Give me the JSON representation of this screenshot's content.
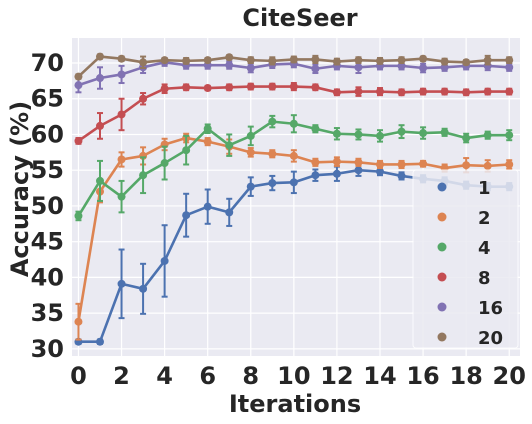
{
  "chart_data": {
    "type": "line",
    "title": "CiteSeer",
    "xlabel": "Iterations",
    "ylabel": "Accuracy (%)",
    "x": [
      0,
      1,
      2,
      3,
      4,
      5,
      6,
      7,
      8,
      9,
      10,
      11,
      12,
      13,
      14,
      15,
      16,
      17,
      18,
      19,
      20
    ],
    "xlim": [
      -0.3,
      20.5
    ],
    "ylim": [
      29,
      73.5
    ],
    "xticks": [
      0,
      2,
      4,
      6,
      8,
      10,
      12,
      14,
      16,
      18,
      20
    ],
    "yticks": [
      30,
      35,
      40,
      45,
      50,
      55,
      60,
      65,
      70
    ],
    "grid": true,
    "legend_position": "bottom-right",
    "series": [
      {
        "name": "1",
        "color": "#4c72b0",
        "values": [
          31.0,
          31.0,
          39.1,
          38.4,
          42.3,
          48.7,
          49.9,
          49.1,
          52.7,
          53.2,
          53.3,
          54.3,
          54.5,
          55.0,
          54.8,
          54.2,
          53.8,
          53.5,
          52.9,
          52.7,
          52.7
        ],
        "errors": [
          0.3,
          0.3,
          4.8,
          3.5,
          5.0,
          3.0,
          2.4,
          1.9,
          1.3,
          1.0,
          1.5,
          0.8,
          1.0,
          0.8,
          0.5,
          0.5,
          0.5,
          0.5,
          0.5,
          0.5,
          0.5
        ]
      },
      {
        "name": "2",
        "color": "#dd8452",
        "values": [
          33.8,
          52.0,
          56.5,
          57.0,
          58.6,
          59.5,
          59.0,
          58.3,
          57.5,
          57.3,
          57.0,
          56.1,
          56.2,
          56.1,
          55.8,
          55.8,
          55.9,
          55.3,
          55.7,
          55.6,
          55.8
        ],
        "errors": [
          2.5,
          1.5,
          1.0,
          1.2,
          0.8,
          0.6,
          0.5,
          1.0,
          0.6,
          0.5,
          0.8,
          0.5,
          0.6,
          0.5,
          0.5,
          0.5,
          0.4,
          0.5,
          1.0,
          0.8,
          0.6
        ]
      },
      {
        "name": "4",
        "color": "#55a868",
        "values": [
          48.6,
          53.5,
          51.3,
          54.3,
          56.0,
          57.8,
          60.8,
          58.5,
          59.8,
          61.8,
          61.5,
          60.8,
          60.1,
          60.0,
          59.8,
          60.4,
          60.2,
          60.3,
          59.5,
          59.9,
          59.9
        ],
        "errors": [
          0.6,
          2.8,
          2.2,
          2.5,
          2.3,
          2.0,
          0.6,
          1.5,
          1.3,
          0.8,
          1.2,
          0.5,
          0.8,
          0.7,
          0.8,
          0.9,
          0.8,
          0.5,
          0.6,
          0.5,
          0.7
        ]
      },
      {
        "name": "8",
        "color": "#c44e52",
        "values": [
          59.1,
          61.2,
          62.8,
          65.0,
          66.4,
          66.6,
          66.5,
          66.6,
          66.7,
          66.7,
          66.7,
          66.6,
          65.9,
          66.0,
          66.0,
          65.9,
          66.0,
          66.0,
          65.9,
          66.0,
          66.0
        ],
        "errors": [
          0.4,
          1.8,
          2.2,
          0.8,
          0.6,
          0.4,
          0.3,
          0.4,
          0.4,
          0.4,
          0.5,
          0.4,
          0.4,
          0.6,
          0.5,
          0.4,
          0.4,
          0.4,
          0.4,
          0.4,
          0.4
        ]
      },
      {
        "name": "16",
        "color": "#8172b3",
        "values": [
          66.9,
          67.9,
          68.4,
          69.4,
          70.1,
          69.7,
          69.7,
          69.7,
          69.3,
          69.8,
          69.9,
          69.2,
          69.6,
          69.4,
          69.6,
          69.6,
          69.3,
          69.4,
          69.6,
          69.6,
          69.4
        ],
        "errors": [
          1.0,
          1.5,
          1.2,
          0.8,
          0.5,
          0.5,
          0.5,
          0.5,
          0.6,
          0.5,
          0.5,
          0.6,
          0.5,
          0.8,
          0.5,
          0.5,
          0.6,
          0.5,
          0.5,
          0.6,
          0.5
        ]
      },
      {
        "name": "20",
        "color": "#937860",
        "values": [
          68.1,
          70.9,
          70.6,
          70.1,
          70.4,
          70.3,
          70.4,
          70.8,
          70.4,
          70.3,
          70.5,
          70.5,
          70.2,
          70.4,
          70.3,
          70.4,
          70.6,
          70.2,
          70.1,
          70.4,
          70.4
        ],
        "errors": [
          0.3,
          0.3,
          0.3,
          0.8,
          0.3,
          0.4,
          0.3,
          0.3,
          0.4,
          0.5,
          0.4,
          0.5,
          0.4,
          0.4,
          0.4,
          0.4,
          0.3,
          0.4,
          0.3,
          0.6,
          0.4
        ]
      }
    ]
  }
}
